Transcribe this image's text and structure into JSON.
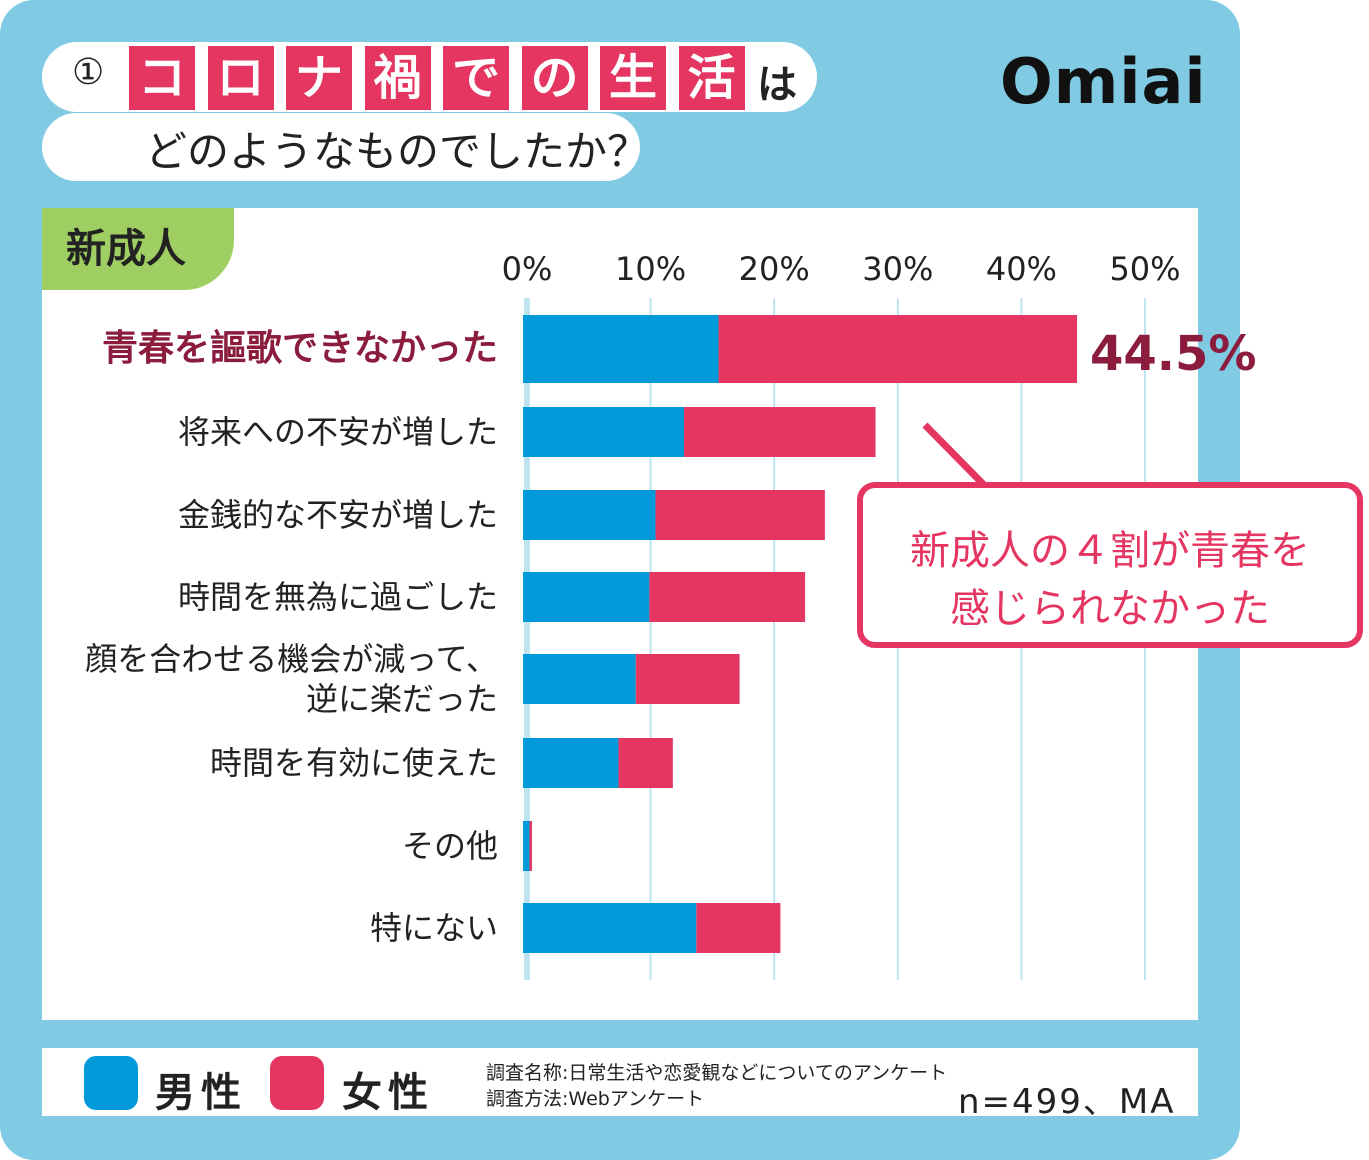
{
  "header": {
    "number": "①",
    "title_boxed": [
      "コ",
      "ロ",
      "ナ",
      "禍",
      "で",
      "の",
      "生",
      "活"
    ],
    "title_tail": "は",
    "subtitle": "どのようなものでしたか？",
    "logo": "Omiai"
  },
  "group_tag": "新成人",
  "callout": {
    "line1": "新成人の４割が青春を",
    "line2": "感じられなかった"
  },
  "legend": {
    "male": "男性",
    "female": "女性"
  },
  "notes": {
    "survey_name": "調査名称:日常生活や恋愛観などについてのアンケート",
    "survey_method": "調査方法:Webアンケート",
    "sample": "n=499、MA"
  },
  "colors": {
    "male": "#0099d9",
    "female": "#e53662",
    "background": "#80cbe3",
    "highlight": "#8b1c3d"
  },
  "chart_data": {
    "type": "bar",
    "orientation": "horizontal",
    "stacked": true,
    "categories": [
      "青春を謳歌できなかった",
      "将来への不安が増した",
      "金銭的な不安が増した",
      "時間を無為に過ごした",
      "顔を合わせる機会が減って、\n逆に楽だった",
      "時間を有効に使えた",
      "その他",
      "特にない"
    ],
    "series": [
      {
        "name": "男性",
        "values": [
          15.5,
          12.7,
          10.4,
          9.9,
          8.8,
          7.4,
          0.2,
          13.7
        ]
      },
      {
        "name": "女性",
        "values": [
          29.0,
          15.5,
          13.7,
          12.6,
          8.4,
          4.4,
          0.2,
          6.8
        ]
      }
    ],
    "xlim": [
      0,
      50
    ],
    "xticks": [
      "0%",
      "10%",
      "20%",
      "30%",
      "40%",
      "50%"
    ],
    "data_labels": {
      "0": "44.5%"
    },
    "grid": true,
    "legend": "bottom"
  }
}
